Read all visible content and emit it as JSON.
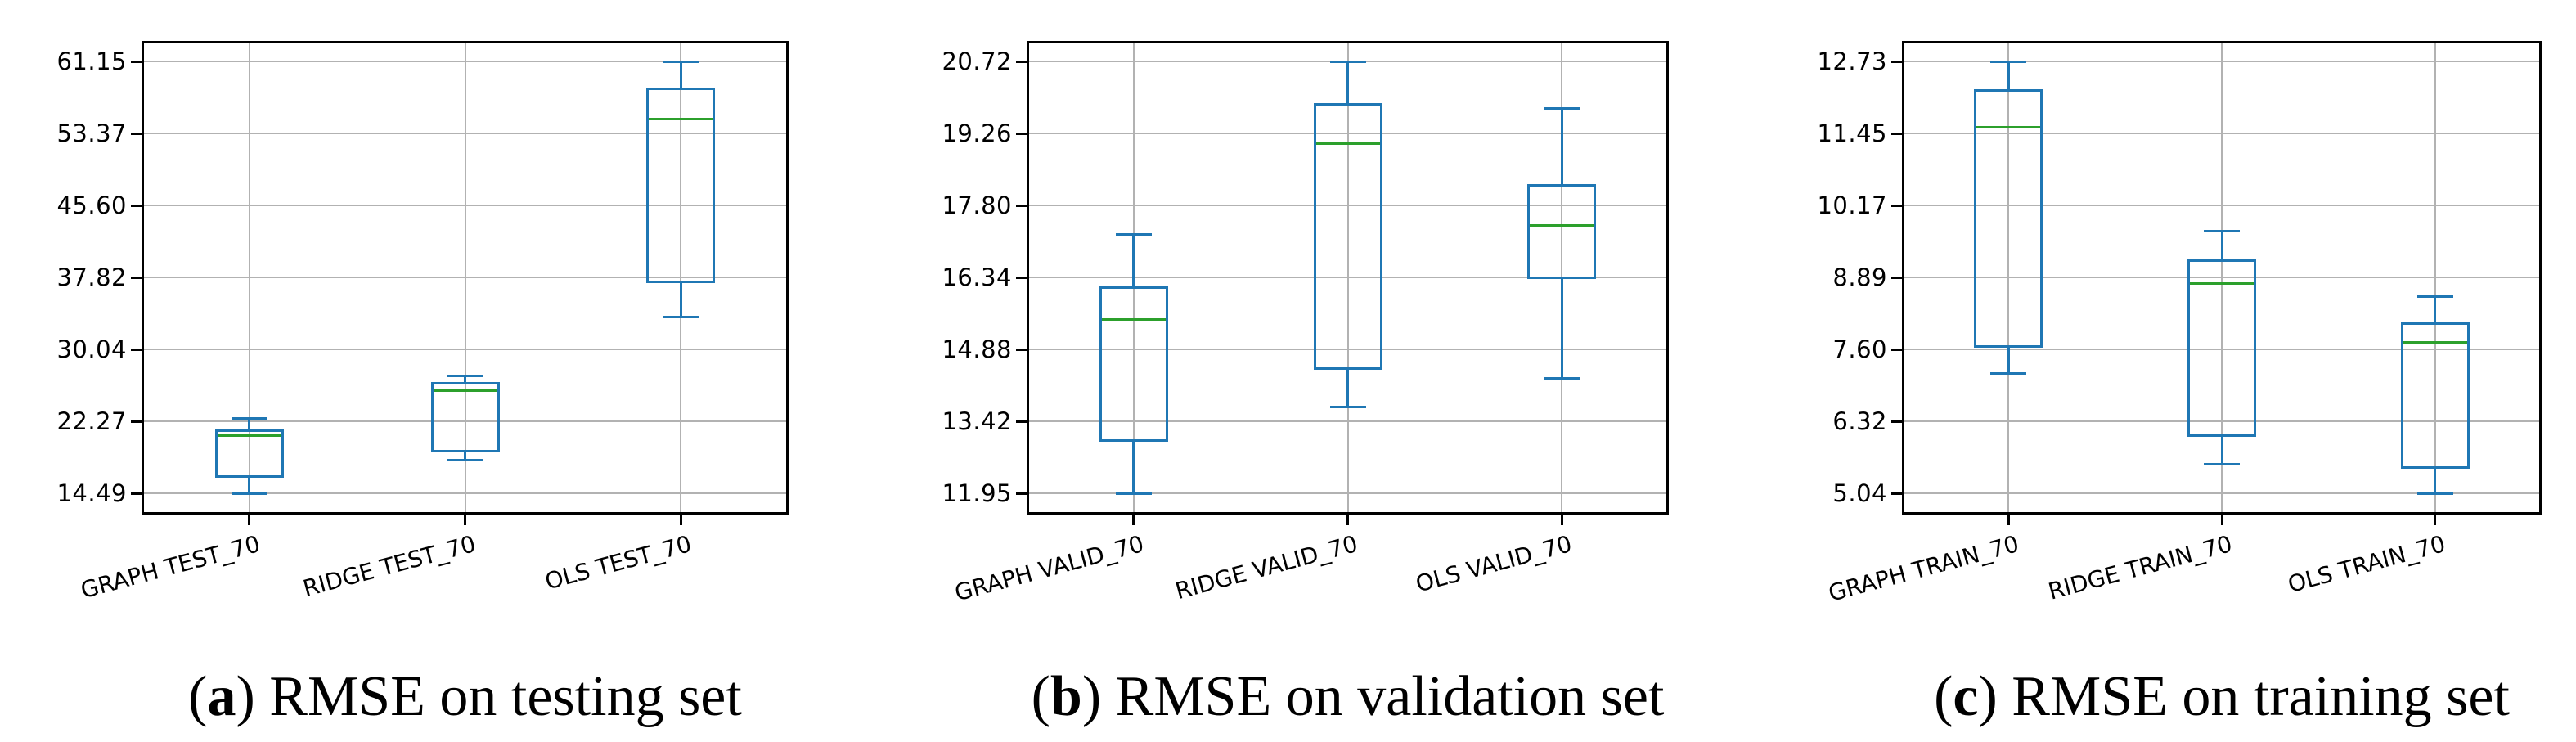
{
  "colors": {
    "box": "#1f77b4",
    "median": "#2ca02c",
    "grid": "#b2b2b2",
    "frame": "#000000",
    "text": "#000000",
    "background": "#ffffff"
  },
  "chart_data": [
    {
      "type": "boxplot",
      "caption": {
        "letter": "a",
        "text": "RMSE on testing set"
      },
      "ylabel": "",
      "xlabel": "",
      "grid": true,
      "legend": false,
      "xtick_rotation_deg": 15,
      "ytick_labels": [
        "61.15",
        "53.37",
        "45.60",
        "37.82",
        "30.04",
        "22.27",
        "14.49"
      ],
      "ylim": [
        12.2,
        63.4
      ],
      "categories": [
        "GRAPH TEST_70",
        "RIDGE TEST_70",
        "OLS TEST_70"
      ],
      "boxes": [
        {
          "label": "GRAPH TEST_70",
          "whisker_low": 14.49,
          "q1": 16.2,
          "median": 20.7,
          "q3": 21.4,
          "whisker_high": 22.55
        },
        {
          "label": "RIDGE TEST_70",
          "whisker_low": 18.1,
          "q1": 18.9,
          "median": 25.6,
          "q3": 26.5,
          "whisker_high": 27.2
        },
        {
          "label": "OLS TEST_70",
          "whisker_low": 33.5,
          "q1": 37.2,
          "median": 54.9,
          "q3": 58.3,
          "whisker_high": 61.15
        }
      ]
    },
    {
      "type": "boxplot",
      "caption": {
        "letter": "b",
        "text": "RMSE on validation set"
      },
      "ylabel": "",
      "xlabel": "",
      "grid": true,
      "legend": false,
      "xtick_rotation_deg": 15,
      "ytick_labels": [
        "20.72",
        "19.26",
        "17.80",
        "16.34",
        "14.88",
        "13.42",
        "11.95"
      ],
      "ylim": [
        11.5,
        21.1
      ],
      "categories": [
        "GRAPH VALID_70",
        "RIDGE VALID_70",
        "OLS VALID_70"
      ],
      "boxes": [
        {
          "label": "GRAPH VALID_70",
          "whisker_low": 11.95,
          "q1": 13.0,
          "median": 15.48,
          "q3": 16.16,
          "whisker_high": 17.21
        },
        {
          "label": "RIDGE VALID_70",
          "whisker_low": 13.7,
          "q1": 14.46,
          "median": 19.05,
          "q3": 19.87,
          "whisker_high": 20.72
        },
        {
          "label": "OLS VALID_70",
          "whisker_low": 14.28,
          "q1": 16.31,
          "median": 17.39,
          "q3": 18.23,
          "whisker_high": 19.77
        }
      ]
    },
    {
      "type": "boxplot",
      "caption": {
        "letter": "c",
        "text": "RMSE on training set"
      },
      "ylabel": "",
      "xlabel": "",
      "grid": true,
      "legend": false,
      "xtick_rotation_deg": 15,
      "ytick_labels": [
        "12.73",
        "11.45",
        "10.17",
        "8.89",
        "7.60",
        "6.32",
        "5.04"
      ],
      "ylim": [
        4.7,
        13.1
      ],
      "categories": [
        "GRAPH TRAIN_70",
        "RIDGE TRAIN_70",
        "OLS TRAIN_70"
      ],
      "boxes": [
        {
          "label": "GRAPH TRAIN_70",
          "whisker_low": 7.17,
          "q1": 7.63,
          "median": 11.56,
          "q3": 12.23,
          "whisker_high": 12.73
        },
        {
          "label": "RIDGE TRAIN_70",
          "whisker_low": 5.56,
          "q1": 6.04,
          "median": 8.78,
          "q3": 9.2,
          "whisker_high": 9.71
        },
        {
          "label": "OLS TRAIN_70",
          "whisker_low": 5.04,
          "q1": 5.48,
          "median": 7.72,
          "q3": 8.08,
          "whisker_high": 8.55
        }
      ]
    }
  ]
}
